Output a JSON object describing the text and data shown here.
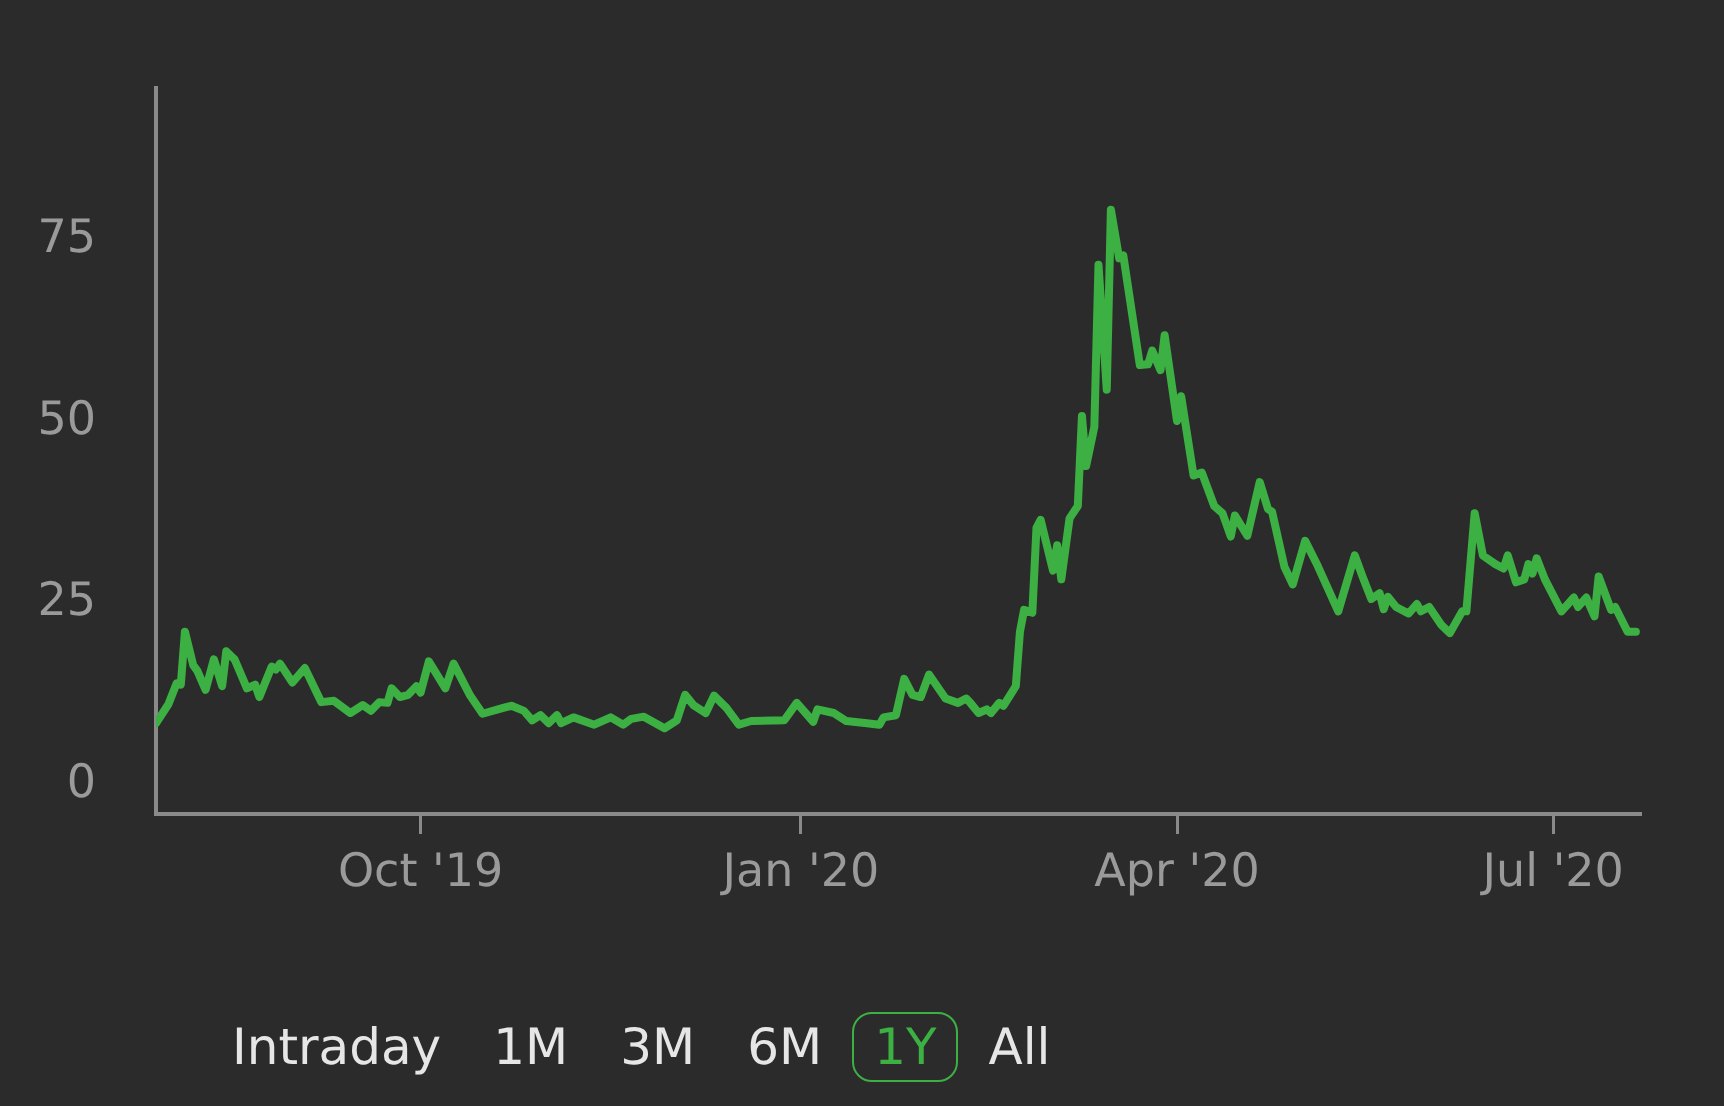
{
  "chart_data": {
    "type": "line",
    "x": [
      "2019-07-29",
      "2019-08-01",
      "2019-08-03",
      "2019-08-04",
      "2019-08-05",
      "2019-08-07",
      "2019-08-08",
      "2019-08-10",
      "2019-08-12",
      "2019-08-14",
      "2019-08-15",
      "2019-08-17",
      "2019-08-20",
      "2019-08-22",
      "2019-08-23",
      "2019-08-26",
      "2019-08-27",
      "2019-08-28",
      "2019-08-31",
      "2019-09-03",
      "2019-09-07",
      "2019-09-10",
      "2019-09-14",
      "2019-09-17",
      "2019-09-19",
      "2019-09-21",
      "2019-09-23",
      "2019-09-24",
      "2019-09-26",
      "2019-09-28",
      "2019-09-30",
      "2019-10-01",
      "2019-10-03",
      "2019-10-07",
      "2019-10-09",
      "2019-10-13",
      "2019-10-16",
      "2019-10-21",
      "2019-10-23",
      "2019-10-26",
      "2019-10-28",
      "2019-10-30",
      "2019-11-01",
      "2019-11-03",
      "2019-11-04",
      "2019-11-07",
      "2019-11-12",
      "2019-11-16",
      "2019-11-19",
      "2019-11-21",
      "2019-11-24",
      "2019-11-29",
      "2019-12-02",
      "2019-12-04",
      "2019-12-06",
      "2019-12-09",
      "2019-12-11",
      "2019-12-14",
      "2019-12-17",
      "2019-12-20",
      "2019-12-28",
      "2019-12-31",
      "2020-01-04",
      "2020-01-05",
      "2020-01-09",
      "2020-01-12",
      "2020-01-17",
      "2020-01-20",
      "2020-01-21",
      "2020-01-24",
      "2020-01-26",
      "2020-01-28",
      "2020-01-30",
      "2020-02-01",
      "2020-02-05",
      "2020-02-08",
      "2020-02-10",
      "2020-02-11",
      "2020-02-13",
      "2020-02-15",
      "2020-02-16",
      "2020-02-18",
      "2020-02-19",
      "2020-02-22",
      "2020-02-23",
      "2020-02-24",
      "2020-02-26",
      "2020-02-27",
      "2020-02-28",
      "2020-03-02",
      "2020-03-03",
      "2020-03-04",
      "2020-03-06",
      "2020-03-08",
      "2020-03-09",
      "2020-03-10",
      "2020-03-12",
      "2020-03-13",
      "2020-03-15",
      "2020-03-16",
      "2020-03-18",
      "2020-03-19",
      "2020-03-23",
      "2020-03-25",
      "2020-03-26",
      "2020-03-28",
      "2020-03-29",
      "2020-04-01",
      "2020-04-02",
      "2020-04-05",
      "2020-04-07",
      "2020-04-10",
      "2020-04-12",
      "2020-04-14",
      "2020-04-15",
      "2020-04-18",
      "2020-04-21",
      "2020-04-23",
      "2020-04-24",
      "2020-04-27",
      "2020-04-29",
      "2020-05-02",
      "2020-05-05",
      "2020-05-10",
      "2020-05-14",
      "2020-05-16",
      "2020-05-18",
      "2020-05-20",
      "2020-05-21",
      "2020-05-22",
      "2020-05-24",
      "2020-05-27",
      "2020-05-29",
      "2020-05-30",
      "2020-06-01",
      "2020-06-04",
      "2020-06-06",
      "2020-06-09",
      "2020-06-10",
      "2020-06-12",
      "2020-06-14",
      "2020-06-17",
      "2020-06-19",
      "2020-06-20",
      "2020-06-22",
      "2020-06-24",
      "2020-06-25",
      "2020-06-26",
      "2020-06-27",
      "2020-06-29",
      "2020-07-03",
      "2020-07-06",
      "2020-07-07",
      "2020-07-09",
      "2020-07-11",
      "2020-07-12",
      "2020-07-15",
      "2020-07-16",
      "2020-07-19",
      "2020-07-21"
    ],
    "series": [
      {
        "color": "#3cb043",
        "values": [
          8.5,
          11.1,
          14.0,
          13.8,
          21.1,
          16.5,
          15.7,
          13.1,
          17.3,
          13.6,
          18.4,
          17.3,
          13.3,
          13.8,
          12.1,
          16.3,
          15.9,
          16.7,
          14.1,
          16.1,
          11.4,
          11.6,
          9.9,
          11.0,
          10.2,
          11.4,
          11.3,
          13.3,
          12.1,
          12.4,
          13.6,
          12.7,
          17.0,
          13.3,
          16.7,
          12.3,
          9.8,
          10.6,
          10.9,
          10.2,
          8.9,
          9.6,
          8.5,
          9.6,
          8.5,
          9.3,
          8.3,
          9.3,
          8.3,
          9.1,
          9.4,
          7.8,
          8.9,
          12.4,
          11.0,
          9.9,
          12.3,
          10.6,
          8.3,
          8.8,
          8.9,
          11.3,
          8.7,
          10.4,
          9.9,
          8.8,
          8.5,
          8.3,
          9.3,
          9.6,
          14.6,
          12.4,
          12.1,
          15.2,
          11.9,
          11.3,
          11.9,
          11.3,
          9.9,
          10.4,
          9.9,
          11.3,
          10.9,
          13.6,
          21.1,
          24.1,
          23.7,
          35.4,
          36.5,
          29.5,
          33.0,
          28.3,
          36.7,
          38.4,
          50.8,
          43.9,
          49.3,
          71.6,
          54.4,
          79.2,
          72.5,
          72.9,
          57.8,
          57.9,
          59.8,
          57.1,
          61.9,
          50.1,
          53.5,
          42.6,
          43.0,
          38.4,
          37.4,
          34.2,
          37.1,
          34.3,
          41.7,
          38.0,
          37.6,
          30.0,
          27.6,
          33.6,
          30.2,
          23.9,
          31.6,
          28.5,
          25.6,
          26.4,
          24.2,
          25.9,
          24.5,
          23.6,
          24.9,
          23.9,
          24.5,
          22.0,
          20.9,
          23.9,
          23.9,
          37.4,
          31.6,
          30.4,
          29.8,
          31.6,
          27.9,
          28.3,
          30.4,
          29.1,
          31.2,
          28.3,
          23.9,
          25.8,
          24.5,
          25.8,
          23.2,
          28.7,
          24.1,
          24.5,
          21.1,
          21.1
        ]
      }
    ],
    "xlim": [
      "2019-07-29",
      "2020-07-22"
    ],
    "xticks": [
      {
        "value": "2019-10-01",
        "label": "Oct '19"
      },
      {
        "value": "2020-01-01",
        "label": "Jan '20"
      },
      {
        "value": "2020-04-01",
        "label": "Apr '20"
      },
      {
        "value": "2020-07-01",
        "label": "Jul '20"
      }
    ],
    "ylim": [
      -4,
      96
    ],
    "yticks": [
      0,
      25,
      50,
      75
    ],
    "grid": false,
    "annotations": [
      "Intraday",
      "1M",
      "3M",
      "6M",
      "1Y",
      "All"
    ]
  }
}
